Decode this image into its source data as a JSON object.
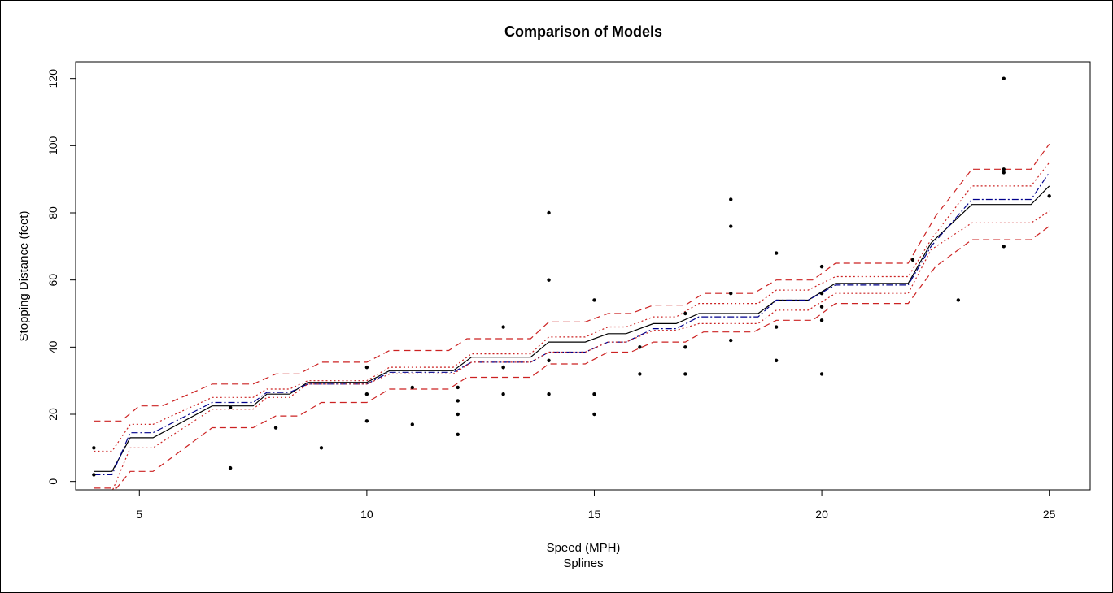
{
  "chart_data": {
    "type": "scatter",
    "title": "Comparison of Models",
    "xlabel": "Speed (MPH)",
    "xsublabel": "Splines",
    "ylabel": "Stopping Distance (feet)",
    "xlim": [
      3.6,
      25.9
    ],
    "ylim": [
      -2.5,
      125
    ],
    "xticks": [
      5,
      10,
      15,
      20,
      25
    ],
    "yticks": [
      0,
      20,
      40,
      60,
      80,
      100,
      120
    ],
    "grid": false,
    "legend": "none",
    "colors": {
      "fit": "#000000",
      "alt_fit": "#00008b",
      "band": "#cc2222"
    },
    "points": {
      "x": [
        4,
        4,
        7,
        7,
        8,
        9,
        10,
        10,
        10,
        11,
        11,
        12,
        12,
        12,
        12,
        13,
        13,
        13,
        13,
        14,
        14,
        14,
        14,
        15,
        15,
        15,
        16,
        16,
        17,
        17,
        17,
        18,
        18,
        18,
        18,
        19,
        19,
        19,
        20,
        20,
        20,
        20,
        20,
        22,
        23,
        24,
        24,
        24,
        24,
        25
      ],
      "y": [
        2,
        10,
        4,
        22,
        16,
        10,
        18,
        26,
        34,
        17,
        28,
        14,
        20,
        24,
        28,
        26,
        34,
        34,
        46,
        26,
        36,
        60,
        80,
        20,
        26,
        54,
        32,
        40,
        32,
        40,
        50,
        42,
        56,
        76,
        84,
        36,
        46,
        68,
        32,
        48,
        52,
        56,
        64,
        66,
        54,
        70,
        92,
        93,
        120,
        85
      ]
    },
    "series": [
      {
        "style": "solid",
        "x": [
          4,
          4.4,
          4.8,
          5.3,
          6.6,
          7.5,
          7.8,
          8.3,
          8.7,
          10,
          10.5,
          11.9,
          12.3,
          13.6,
          14,
          14.8,
          15.3,
          15.7,
          16.3,
          16.8,
          17.3,
          18.6,
          19,
          19.7,
          20.3,
          21.9,
          22.4,
          23.3,
          24.6,
          25
        ],
        "y": [
          3,
          3,
          13,
          13,
          22.5,
          22.5,
          26,
          26,
          29.5,
          29.5,
          33,
          33,
          37,
          37,
          41.5,
          41.5,
          44,
          44,
          47,
          47,
          50,
          50,
          54,
          54,
          59,
          59,
          71,
          82.5,
          82.5,
          88
        ]
      },
      {
        "style": "dotdash",
        "x": [
          4,
          4.4,
          4.8,
          5.3,
          6.6,
          7.5,
          7.8,
          8.3,
          8.7,
          10,
          10.5,
          11.9,
          12.3,
          13.6,
          14,
          14.8,
          15.3,
          15.7,
          16.3,
          16.8,
          17.3,
          18.6,
          19,
          19.7,
          20.3,
          21.9,
          22.4,
          23.3,
          24.6,
          25
        ],
        "y": [
          2,
          2,
          14.5,
          14.5,
          23.5,
          23.5,
          26.5,
          26.5,
          29,
          29,
          32.5,
          32.5,
          35.5,
          35.5,
          38.5,
          38.5,
          41.5,
          41.5,
          45.5,
          45.5,
          49,
          49,
          54,
          54,
          58.5,
          58.5,
          70,
          84,
          84,
          92
        ]
      },
      {
        "style": "dotted",
        "x": [
          4,
          4.4,
          4.8,
          5.3,
          6.6,
          7.5,
          7.8,
          8.3,
          8.7,
          10,
          10.5,
          11.9,
          12.3,
          13.6,
          14,
          14.8,
          15.3,
          15.7,
          16.3,
          16.8,
          17.3,
          18.6,
          19,
          19.7,
          20.3,
          21.9,
          22.4,
          23.3,
          24.6,
          25
        ],
        "y": [
          9,
          9,
          17,
          17,
          25,
          25,
          27.5,
          27.5,
          30,
          30,
          34,
          34,
          38,
          38,
          43,
          43,
          46,
          46,
          49,
          49,
          53,
          53,
          57,
          57,
          61,
          61,
          72,
          88,
          88,
          95
        ]
      },
      {
        "style": "dotted",
        "x": [
          4,
          4.4,
          4.8,
          5.3,
          6.6,
          7.5,
          7.8,
          8.3,
          8.7,
          10,
          10.5,
          11.9,
          12.3,
          13.6,
          14,
          14.8,
          15.3,
          15.7,
          16.3,
          16.8,
          17.3,
          18.6,
          19,
          19.7,
          20.3,
          21.9,
          22.4,
          23.3,
          24.6,
          25
        ],
        "y": [
          -3,
          -3,
          10,
          10,
          21.5,
          21.5,
          25,
          25,
          29,
          29,
          32,
          32,
          35.5,
          35.5,
          38.5,
          38.5,
          41.5,
          41.5,
          45,
          45,
          47,
          47,
          51,
          51,
          56,
          56,
          69,
          77,
          77,
          80.5
        ]
      },
      {
        "style": "dashed",
        "x": [
          4,
          4.6,
          5,
          5.5,
          6.6,
          7.5,
          8,
          8.5,
          9,
          10,
          10.5,
          11.8,
          12.2,
          13.6,
          14,
          14.8,
          15.3,
          15.8,
          16.3,
          17,
          17.4,
          18.5,
          19,
          19.8,
          20.3,
          21.9,
          22.5,
          23.3,
          24.6,
          25
        ],
        "y": [
          18,
          18,
          22.5,
          22.5,
          29,
          29,
          32,
          32,
          35.5,
          35.5,
          39,
          39,
          42.5,
          42.5,
          47.5,
          47.5,
          50,
          50,
          52.5,
          52.5,
          56,
          56,
          60,
          60,
          65,
          65,
          79,
          93,
          93,
          100.5
        ]
      },
      {
        "style": "dashed",
        "x": [
          4,
          4.5,
          4.8,
          5.3,
          6.6,
          7.5,
          8,
          8.5,
          9,
          10,
          10.5,
          11.8,
          12.2,
          13.6,
          14,
          14.8,
          15.3,
          15.8,
          16.3,
          17,
          17.4,
          18.5,
          19,
          19.8,
          20.3,
          21.9,
          22.5,
          23.3,
          24.6,
          25
        ],
        "y": [
          -2,
          -2,
          3,
          3,
          16,
          16,
          19.5,
          19.5,
          23.5,
          23.5,
          27.5,
          27.5,
          31,
          31,
          35,
          35,
          38.5,
          38.5,
          41.5,
          41.5,
          44.5,
          44.5,
          48,
          48,
          53,
          53,
          64,
          72,
          72,
          76
        ]
      }
    ]
  }
}
